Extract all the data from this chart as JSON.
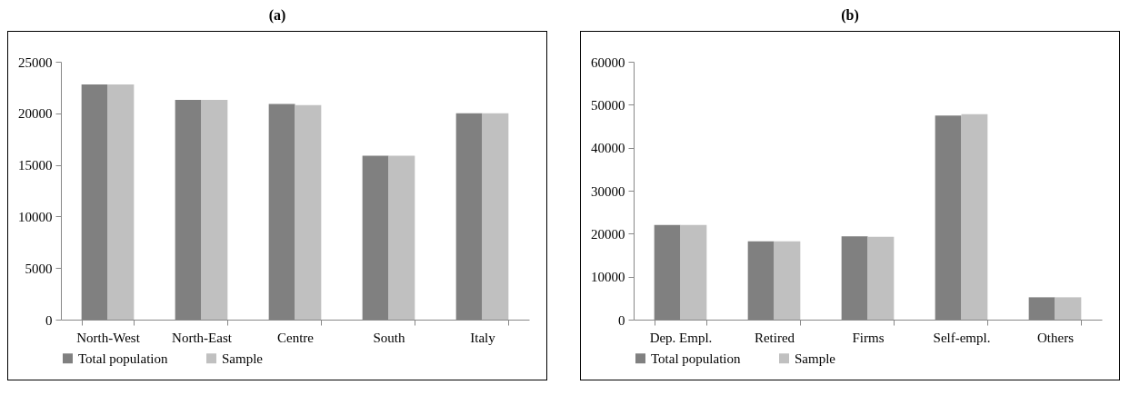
{
  "chart_data": [
    {
      "type": "bar",
      "title": "(a)",
      "categories": [
        "North-West",
        "North-East",
        "Centre",
        "South",
        "Italy"
      ],
      "series": [
        {
          "name": "Total population",
          "color": "#808080",
          "values": [
            22800,
            21300,
            20900,
            15900,
            20000
          ]
        },
        {
          "name": "Sample",
          "color": "#c0c0c0",
          "values": [
            22800,
            21300,
            20800,
            15900,
            20000
          ]
        }
      ],
      "ylim": [
        0,
        25000
      ],
      "yticks": [
        0,
        5000,
        10000,
        15000,
        20000,
        25000
      ],
      "grid": false,
      "legend": "bottom"
    },
    {
      "type": "bar",
      "title": "(b)",
      "categories": [
        "Dep. Empl.",
        "Retired",
        "Firms",
        "Self-empl.",
        "Others"
      ],
      "series": [
        {
          "name": "Total population",
          "color": "#808080",
          "values": [
            22000,
            18200,
            19400,
            47500,
            5200
          ]
        },
        {
          "name": "Sample",
          "color": "#c0c0c0",
          "values": [
            22000,
            18200,
            19300,
            47800,
            5200
          ]
        }
      ],
      "ylim": [
        0,
        60000
      ],
      "yticks": [
        0,
        10000,
        20000,
        30000,
        40000,
        50000,
        60000
      ],
      "grid": false,
      "legend": "bottom"
    }
  ]
}
